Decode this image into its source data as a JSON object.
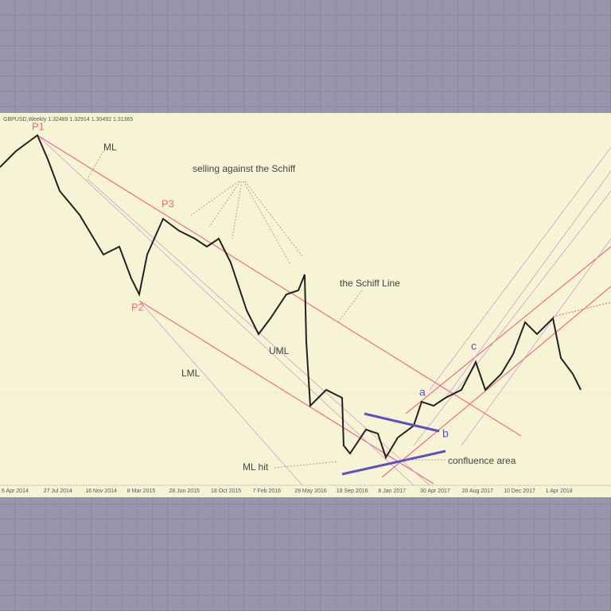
{
  "header": {
    "symbol_info": "GBPUSD,Weekly  1.32489 1.32914 1.30492 1.31365"
  },
  "annotations": {
    "p1": "P1",
    "p2": "P2",
    "p3": "P3",
    "ml": "ML",
    "uml": "UML",
    "lml": "LML",
    "selling": "selling against the Schiff",
    "schiff_line": "the Schiff Line",
    "ml_hit": "ML hit",
    "confluence": "confluence area",
    "a": "a",
    "b": "b",
    "c": "c"
  },
  "dates": [
    "6 Apr 2014",
    "27 Jul 2014",
    "16 Nov 2014",
    "8 Mar 2015",
    "28 Jun 2015",
    "18 Oct 2015",
    "7 Feb 2016",
    "29 May 2016",
    "18 Sep 2016",
    "8 Jan 2017",
    "30 Apr 2017",
    "20 Aug 2017",
    "10 Dec 2017",
    "1 Apr 2018"
  ]
}
